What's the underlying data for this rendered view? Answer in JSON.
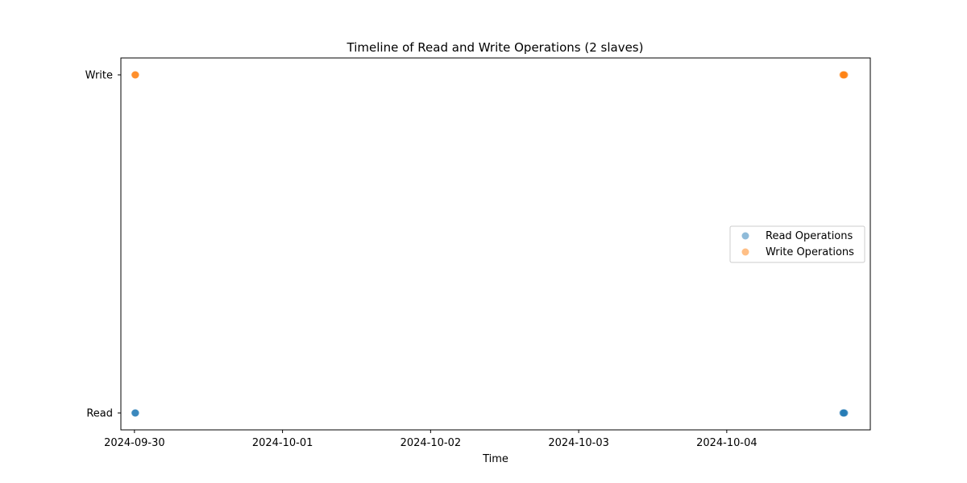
{
  "chart_data": {
    "type": "scatter",
    "title": "Timeline of Read and Write Operations (2 slaves)",
    "xlabel": "Time",
    "ylabel": "",
    "x_type": "datetime",
    "xlim": [
      "2024-09-29T21:48",
      "2024-10-04T23:16"
    ],
    "x_ticks": [
      "2024-09-30",
      "2024-10-01",
      "2024-10-02",
      "2024-10-03",
      "2024-10-04"
    ],
    "y_categories": [
      "Read",
      "Write"
    ],
    "grid": false,
    "legend_position": "center-right",
    "series": [
      {
        "name": "Read Operations",
        "color": "#1f77b4",
        "category": "Read",
        "x": [
          "2024-09-30T00:05",
          "2024-09-30T00:08",
          "2024-09-30T00:11",
          "2024-10-04T18:50",
          "2024-10-04T18:54",
          "2024-10-04T18:58",
          "2024-10-04T19:02",
          "2024-10-04T19:06"
        ]
      },
      {
        "name": "Write Operations",
        "color": "#ff7f0e",
        "category": "Write",
        "x": [
          "2024-09-30T00:05",
          "2024-09-30T00:08",
          "2024-09-30T00:11",
          "2024-10-04T18:50",
          "2024-10-04T18:54",
          "2024-10-04T18:58",
          "2024-10-04T19:02",
          "2024-10-04T19:06"
        ]
      }
    ]
  }
}
